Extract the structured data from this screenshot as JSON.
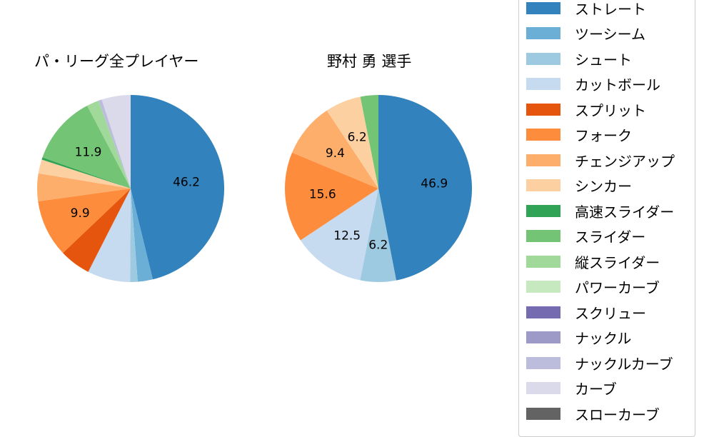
{
  "titles": {
    "left": "パ・リーグ全プレイヤー",
    "right": "野村 勇  選手"
  },
  "legend": {
    "items": [
      {
        "label": "ストレート",
        "color": "#3182bd"
      },
      {
        "label": "ツーシーム",
        "color": "#6baed6"
      },
      {
        "label": "シュート",
        "color": "#9ecae1"
      },
      {
        "label": "カットボール",
        "color": "#c6dbef"
      },
      {
        "label": "スプリット",
        "color": "#e6550d"
      },
      {
        "label": "フォーク",
        "color": "#fd8d3c"
      },
      {
        "label": "チェンジアップ",
        "color": "#fdae6b"
      },
      {
        "label": "シンカー",
        "color": "#fdd0a2"
      },
      {
        "label": "高速スライダー",
        "color": "#31a354"
      },
      {
        "label": "スライダー",
        "color": "#74c476"
      },
      {
        "label": "縦スライダー",
        "color": "#a1d99b"
      },
      {
        "label": "パワーカーブ",
        "color": "#c7e9c0"
      },
      {
        "label": "スクリュー",
        "color": "#756bb1"
      },
      {
        "label": "ナックル",
        "color": "#9e9ac8"
      },
      {
        "label": "ナックルカーブ",
        "color": "#bcbddc"
      },
      {
        "label": "カーブ",
        "color": "#dadaeb"
      },
      {
        "label": "スローカーブ",
        "color": "#636363"
      }
    ]
  },
  "chart_data": [
    {
      "type": "pie",
      "title": "パ・リーグ全プレイヤー",
      "categories": [
        "ストレート",
        "ツーシーム",
        "シュート",
        "カットボール",
        "スプリット",
        "フォーク",
        "チェンジアップ",
        "シンカー",
        "高速スライダー",
        "スライダー",
        "縦スライダー",
        "パワーカーブ",
        "スクリュー",
        "ナックル",
        "ナックルカーブ",
        "カーブ",
        "スローカーブ"
      ],
      "values": [
        46.2,
        2.6,
        1.3,
        7.4,
        5.4,
        9.9,
        4.8,
        2.4,
        0.4,
        11.9,
        2.1,
        0.0,
        0.0,
        0.0,
        0.6,
        5.0,
        0.0
      ],
      "labeled_values": {
        "ストレート": "46.2",
        "フォーク": "9.9",
        "スライダー": "11.9"
      },
      "start_angle": 90,
      "direction": "clockwise",
      "legend_position": "right"
    },
    {
      "type": "pie",
      "title": "野村 勇  選手",
      "categories": [
        "ストレート",
        "ツーシーム",
        "シュート",
        "カットボール",
        "スプリット",
        "フォーク",
        "チェンジアップ",
        "シンカー",
        "高速スライダー",
        "スライダー",
        "縦スライダー",
        "パワーカーブ",
        "スクリュー",
        "ナックル",
        "ナックルカーブ",
        "カーブ",
        "スローカーブ"
      ],
      "values": [
        46.9,
        0.0,
        6.2,
        12.5,
        0.0,
        15.6,
        9.4,
        6.2,
        0.0,
        3.1,
        0.0,
        0.0,
        0.0,
        0.0,
        0.0,
        0.0,
        0.0
      ],
      "labeled_values": {
        "ストレート": "46.9",
        "シュート": "6.2",
        "カットボール": "12.5",
        "フォーク": "15.6",
        "チェンジアップ": "9.4",
        "シンカー": "6.2"
      },
      "start_angle": 90,
      "direction": "clockwise",
      "legend_position": "right"
    }
  ]
}
